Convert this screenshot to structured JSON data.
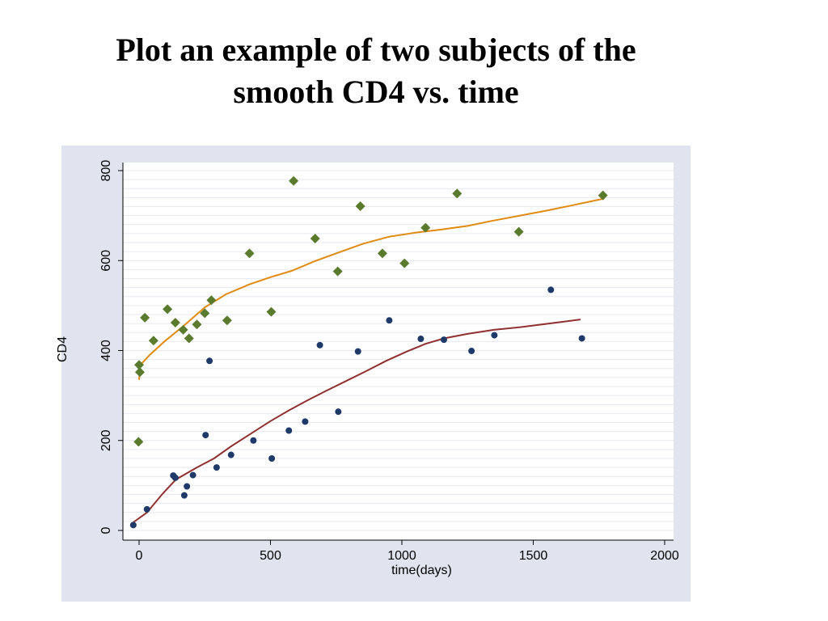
{
  "slide": {
    "title_line1": "Plot an example of two subjects of the",
    "title_line2": "smooth CD4 vs. time"
  },
  "chart_data": {
    "type": "scatter",
    "xlabel": "time(days)",
    "ylabel": "CD4",
    "xlim": [
      0,
      2000
    ],
    "ylim": [
      0,
      800
    ],
    "xticks": [
      0,
      500,
      1000,
      1500,
      2000
    ],
    "yticks": [
      0,
      200,
      400,
      600,
      800
    ],
    "grid": true,
    "colors": {
      "plot_bg": "#ffffff",
      "outer_bg": "#e0e4ef",
      "grid": "#e6e9f0",
      "subject1_points": "#5a7a2e",
      "subject1_smooth": "#e08a10",
      "subject2_points": "#1f3a68",
      "subject2_smooth": "#903030"
    },
    "series": [
      {
        "marker": "diamond",
        "kind": "points",
        "points": [
          [
            0,
            368
          ],
          [
            3,
            352
          ],
          [
            -2,
            197
          ],
          [
            22,
            473
          ],
          [
            55,
            422
          ],
          [
            108,
            492
          ],
          [
            138,
            462
          ],
          [
            168,
            446
          ],
          [
            190,
            427
          ],
          [
            220,
            458
          ],
          [
            250,
            483
          ],
          [
            275,
            512
          ],
          [
            335,
            467
          ],
          [
            420,
            616
          ],
          [
            503,
            486
          ],
          [
            588,
            777
          ],
          [
            670,
            649
          ],
          [
            756,
            576
          ],
          [
            842,
            721
          ],
          [
            926,
            616
          ],
          [
            1010,
            594
          ],
          [
            1090,
            673
          ],
          [
            1210,
            749
          ],
          [
            1445,
            664
          ],
          [
            1765,
            745
          ]
        ]
      },
      {
        "kind": "smooth",
        "points": [
          [
            0,
            335
          ],
          [
            5,
            368
          ],
          [
            40,
            390
          ],
          [
            100,
            422
          ],
          [
            170,
            455
          ],
          [
            250,
            496
          ],
          [
            330,
            525
          ],
          [
            420,
            547
          ],
          [
            500,
            563
          ],
          [
            580,
            577
          ],
          [
            670,
            599
          ],
          [
            760,
            618
          ],
          [
            850,
            637
          ],
          [
            950,
            653
          ],
          [
            1050,
            662
          ],
          [
            1150,
            669
          ],
          [
            1250,
            677
          ],
          [
            1350,
            689
          ],
          [
            1450,
            700
          ],
          [
            1550,
            711
          ],
          [
            1650,
            723
          ],
          [
            1770,
            738
          ]
        ]
      },
      {
        "marker": "circle",
        "kind": "points",
        "points": [
          [
            -22,
            12
          ],
          [
            30,
            47
          ],
          [
            130,
            122
          ],
          [
            138,
            117
          ],
          [
            172,
            78
          ],
          [
            182,
            98
          ],
          [
            205,
            123
          ],
          [
            253,
            212
          ],
          [
            268,
            377
          ],
          [
            295,
            140
          ],
          [
            350,
            168
          ],
          [
            435,
            200
          ],
          [
            505,
            160
          ],
          [
            570,
            222
          ],
          [
            632,
            242
          ],
          [
            688,
            412
          ],
          [
            758,
            264
          ],
          [
            833,
            398
          ],
          [
            952,
            467
          ],
          [
            1072,
            426
          ],
          [
            1160,
            424
          ],
          [
            1265,
            399
          ],
          [
            1352,
            434
          ],
          [
            1567,
            535
          ],
          [
            1685,
            427
          ]
        ]
      },
      {
        "kind": "smooth",
        "points": [
          [
            -22,
            18
          ],
          [
            30,
            40
          ],
          [
            90,
            82
          ],
          [
            140,
            113
          ],
          [
            175,
            125
          ],
          [
            220,
            140
          ],
          [
            285,
            160
          ],
          [
            350,
            187
          ],
          [
            430,
            217
          ],
          [
            500,
            243
          ],
          [
            570,
            267
          ],
          [
            640,
            289
          ],
          [
            710,
            310
          ],
          [
            790,
            333
          ],
          [
            860,
            353
          ],
          [
            940,
            377
          ],
          [
            1020,
            398
          ],
          [
            1090,
            415
          ],
          [
            1160,
            427
          ],
          [
            1250,
            437
          ],
          [
            1350,
            446
          ],
          [
            1450,
            452
          ],
          [
            1560,
            460
          ],
          [
            1680,
            469
          ]
        ]
      }
    ]
  }
}
